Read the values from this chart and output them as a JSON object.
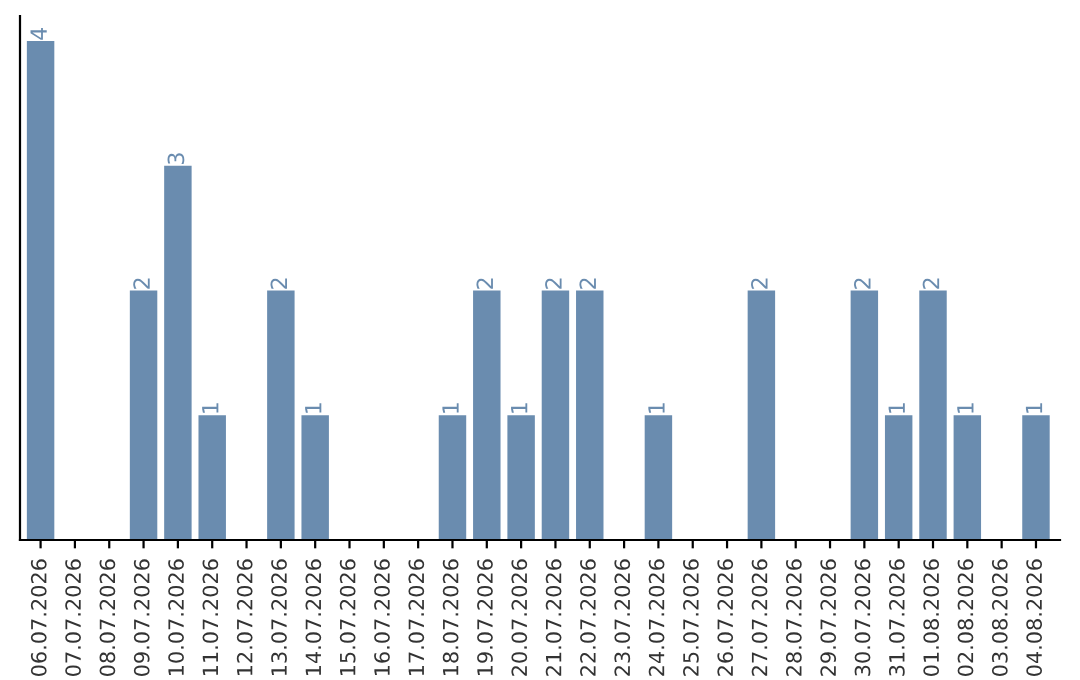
{
  "chart_data": {
    "type": "bar",
    "categories": [
      "06.07.2026",
      "07.07.2026",
      "08.07.2026",
      "09.07.2026",
      "10.07.2026",
      "11.07.2026",
      "12.07.2026",
      "13.07.2026",
      "14.07.2026",
      "15.07.2026",
      "16.07.2026",
      "17.07.2026",
      "18.07.2026",
      "19.07.2026",
      "20.07.2026",
      "21.07.2026",
      "22.07.2026",
      "23.07.2026",
      "24.07.2026",
      "25.07.2026",
      "26.07.2026",
      "27.07.2026",
      "28.07.2026",
      "29.07.2026",
      "30.07.2026",
      "31.07.2026",
      "01.08.2026",
      "02.08.2026",
      "03.08.2026",
      "04.08.2026"
    ],
    "values": [
      4,
      0,
      0,
      2,
      3,
      1,
      0,
      2,
      1,
      0,
      0,
      0,
      1,
      2,
      1,
      2,
      2,
      0,
      1,
      0,
      0,
      2,
      0,
      0,
      2,
      1,
      2,
      1,
      0,
      1
    ],
    "value_labels": [
      "4",
      null,
      null,
      "2",
      "3",
      "1",
      null,
      "2",
      "1",
      null,
      null,
      null,
      "1",
      "2",
      "1",
      "2",
      "2",
      null,
      "1",
      null,
      null,
      "2",
      null,
      null,
      "2",
      "1",
      "2",
      "1",
      null,
      "1"
    ],
    "color": "#6a8caf",
    "tick_labels": "x",
    "grid": false,
    "legend": false
  }
}
